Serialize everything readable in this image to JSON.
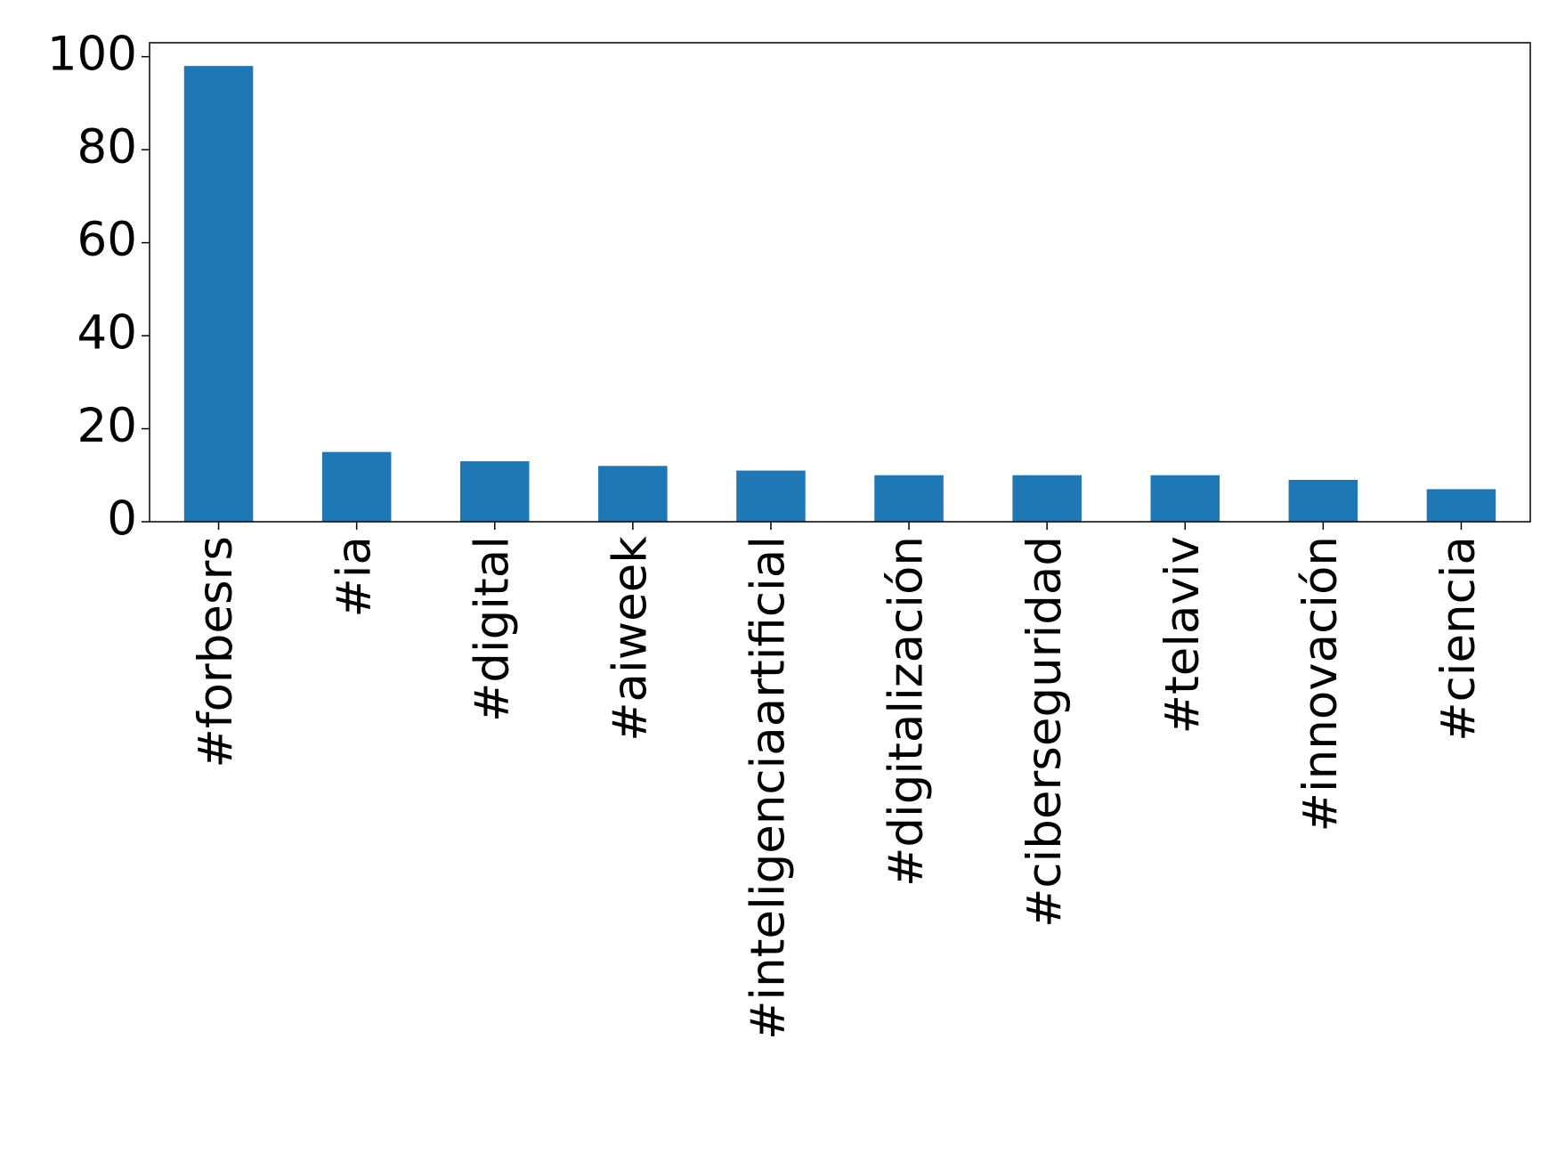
{
  "chart_data": {
    "type": "bar",
    "categories": [
      "#forbesrs",
      "#ia",
      "#digital",
      "#aiweek",
      "#inteligenciaartificial",
      "#digitalización",
      "#ciberseguridad",
      "#telaviv",
      "#innovación",
      "#ciencia"
    ],
    "values": [
      98,
      15,
      13,
      12,
      11,
      10,
      10,
      10,
      9,
      7
    ],
    "color": "#1f77b4",
    "ylim": [
      0,
      103
    ],
    "yticks": [
      0,
      20,
      40,
      60,
      80,
      100
    ],
    "grid": false
  }
}
